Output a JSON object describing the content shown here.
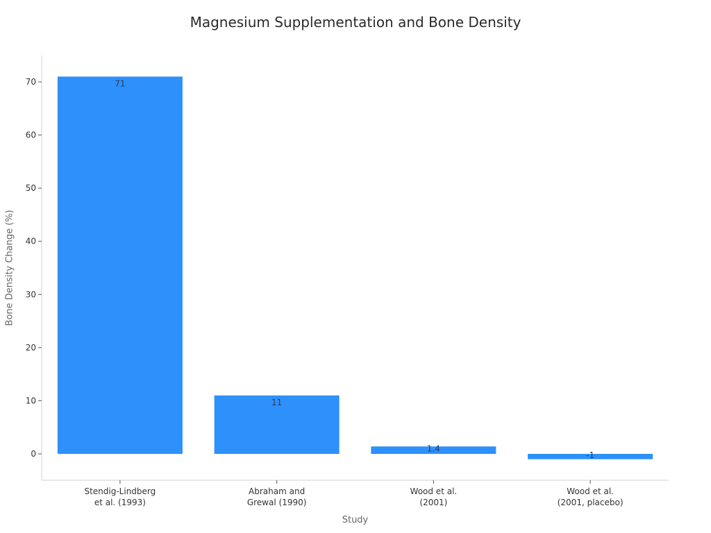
{
  "chart_data": {
    "type": "bar",
    "title": "Magnesium Supplementation and Bone Density",
    "xlabel": "Study",
    "ylabel": "Bone Density Change (%)",
    "categories": [
      [
        "Stendig-Lindberg",
        "et al. (1993)"
      ],
      [
        "Abraham and",
        "Grewal (1990)"
      ],
      [
        "Wood et al.",
        "(2001)"
      ],
      [
        "Wood et al.",
        "(2001, placebo)"
      ]
    ],
    "values": [
      71,
      11,
      1.4,
      -1
    ],
    "value_labels": [
      "71",
      "11",
      "1.4",
      "-1"
    ],
    "yticks": [
      0,
      10,
      20,
      30,
      40,
      50,
      60,
      70
    ],
    "ylim": [
      -5,
      75
    ],
    "bar_color": "#2e90fa",
    "grid": false,
    "legend": null
  }
}
